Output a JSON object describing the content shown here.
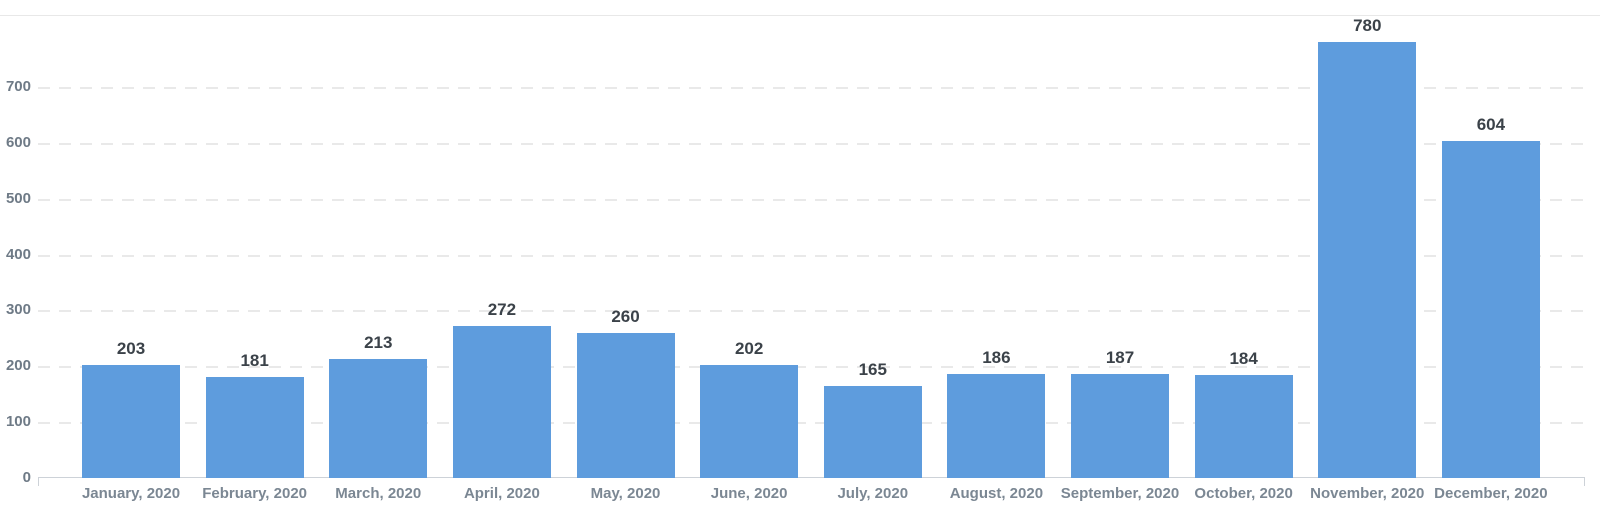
{
  "chart_data": {
    "type": "bar",
    "title": "",
    "xlabel": "",
    "ylabel": "",
    "categories": [
      "January, 2020",
      "February, 2020",
      "March, 2020",
      "April, 2020",
      "May, 2020",
      "June, 2020",
      "July, 2020",
      "August, 2020",
      "September, 2020",
      "October, 2020",
      "November, 2020",
      "December, 2020"
    ],
    "values": [
      203,
      181,
      213,
      272,
      260,
      202,
      165,
      186,
      187,
      184,
      780,
      604
    ],
    "y_ticks": [
      0,
      100,
      200,
      300,
      400,
      500,
      600,
      700
    ],
    "ylim": [
      0,
      830
    ],
    "grid": "horizontal-dashed",
    "legend": "none",
    "colors": {
      "bar": "#5E9CDD",
      "gridline": "#E9E9E9",
      "axis_line": "#CDD2D8",
      "tick_label": "#6E7A86",
      "category_label": "#7B8793",
      "value_label": "#3B4249",
      "background": "#FFFFFF",
      "top_border": "#E8E8E8"
    }
  }
}
